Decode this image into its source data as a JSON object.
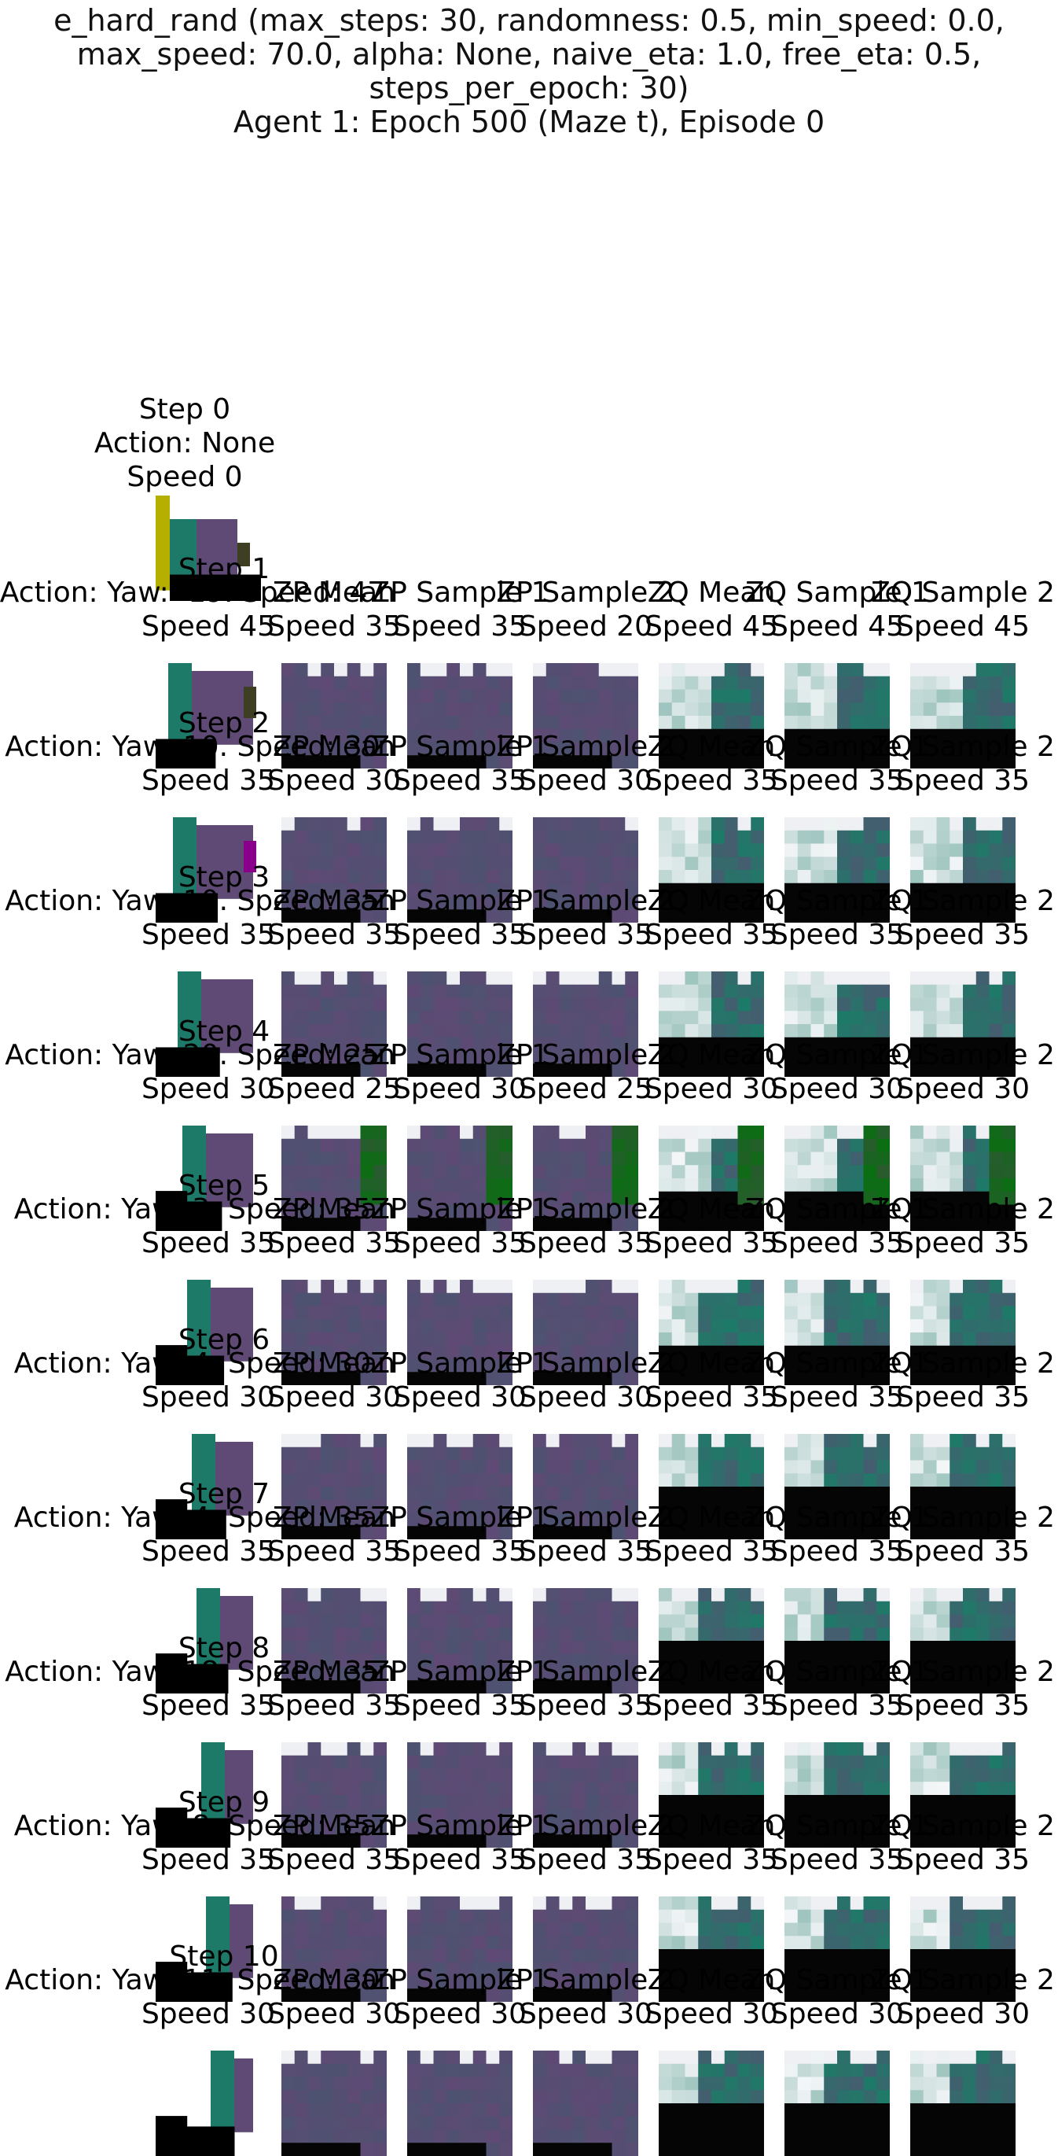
{
  "title_lines": [
    "e_hard_rand (max_steps: 30, randomness: 0.5, min_speed: 0.0,",
    "max_speed: 70.0, alpha: None, naive_eta: 1.0, free_eta: 0.5,",
    "steps_per_epoch: 30)",
    "Agent 1: Epoch 500 (Maze t), Episode 0"
  ],
  "step0": {
    "lines": [
      "Step 0",
      "Action: None",
      "Speed 0"
    ]
  },
  "rows": [
    {
      "step": "Step 1",
      "action": "Action: Yaw: -19. Speed: 47",
      "speeds": [
        "Speed 45",
        "Speed 35",
        "Speed 35",
        "Speed 20",
        "Speed 45",
        "Speed 45",
        "Speed 45"
      ]
    },
    {
      "step": "Step 2",
      "action": "Action: Yaw: 10. Speed: 30",
      "speeds": [
        "Speed 35",
        "Speed 30",
        "Speed 35",
        "Speed 30",
        "Speed 35",
        "Speed 35",
        "Speed 35"
      ]
    },
    {
      "step": "Step 3",
      "action": "Action: Yaw: 10. Speed: 35",
      "speeds": [
        "Speed 35",
        "Speed 35",
        "Speed 35",
        "Speed 35",
        "Speed 35",
        "Speed 35",
        "Speed 35"
      ]
    },
    {
      "step": "Step 4",
      "action": "Action: Yaw: 20. Speed: 25",
      "speeds": [
        "Speed 30",
        "Speed 25",
        "Speed 30",
        "Speed 25",
        "Speed 30",
        "Speed 30",
        "Speed 30"
      ]
    },
    {
      "step": "Step 5",
      "action": "Action: Yaw: 3. Speed: 35",
      "speeds": [
        "Speed 35",
        "Speed 35",
        "Speed 35",
        "Speed 35",
        "Speed 35",
        "Speed 35",
        "Speed 35"
      ]
    },
    {
      "step": "Step 6",
      "action": "Action: Yaw: 4. Speed: 30",
      "speeds": [
        "Speed 30",
        "Speed 30",
        "Speed 30",
        "Speed 30",
        "Speed 35",
        "Speed 35",
        "Speed 35"
      ]
    },
    {
      "step": "Step 7",
      "action": "Action: Yaw: 4. Speed: 35",
      "speeds": [
        "Speed 35",
        "Speed 35",
        "Speed 35",
        "Speed 35",
        "Speed 35",
        "Speed 35",
        "Speed 35"
      ]
    },
    {
      "step": "Step 8",
      "action": "Action: Yaw: 18. Speed: 35",
      "speeds": [
        "Speed 35",
        "Speed 35",
        "Speed 35",
        "Speed 35",
        "Speed 35",
        "Speed 35",
        "Speed 35"
      ]
    },
    {
      "step": "Step 9",
      "action": "Action: Yaw: 8. Speed: 35",
      "speeds": [
        "Speed 35",
        "Speed 35",
        "Speed 35",
        "Speed 35",
        "Speed 35",
        "Speed 35",
        "Speed 35"
      ]
    },
    {
      "step": "Step 10",
      "action": "Action: Yaw: 11. Speed: 30",
      "speeds": [
        "Speed 30",
        "Speed 30",
        "Speed 30",
        "Speed 30",
        "Speed 30",
        "Speed 30",
        "Speed 30"
      ]
    }
  ],
  "column_titles": [
    "ZP Mean",
    "ZP Sample 1",
    "ZP Sample 2",
    "ZQ Mean",
    "ZQ Sample 1",
    "ZQ Sample 2"
  ],
  "colors": {
    "teal": "#1e7a68",
    "purple": "#5e4a74",
    "black": "#000000",
    "olive": "#b5b000",
    "dark_olive": "#3e3e22",
    "green": "#0a6e12",
    "magenta": "#8a008a"
  }
}
